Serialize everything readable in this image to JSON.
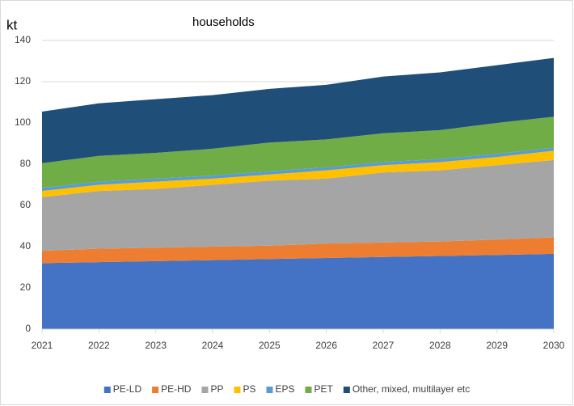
{
  "chart_data": {
    "type": "area",
    "stacked": true,
    "title": "households",
    "ylabel": "kt",
    "categories": [
      "2021",
      "2022",
      "2023",
      "2024",
      "2025",
      "2026",
      "2027",
      "2028",
      "2029",
      "2030"
    ],
    "series": [
      {
        "name": "PE-LD",
        "color": "#4472c4",
        "values": [
          32,
          32.5,
          33,
          33.5,
          34,
          34.5,
          35,
          35.5,
          36,
          36.5
        ]
      },
      {
        "name": "PE-HD",
        "color": "#ed7d31",
        "values": [
          6,
          6.5,
          6.5,
          6.5,
          6.5,
          7,
          7,
          7,
          7.5,
          8
        ]
      },
      {
        "name": "PP",
        "color": "#a5a5a5",
        "values": [
          26,
          28,
          28.5,
          30,
          31.5,
          31.5,
          34,
          34.5,
          36,
          37.5
        ]
      },
      {
        "name": "PS",
        "color": "#ffc000",
        "values": [
          3,
          3,
          3.5,
          3,
          3,
          4,
          3.5,
          4,
          4,
          4.5
        ]
      },
      {
        "name": "EPS",
        "color": "#5b9bd5",
        "values": [
          1.5,
          1.5,
          1.5,
          1.5,
          1.5,
          1.5,
          1.5,
          1.5,
          1.5,
          1.5
        ]
      },
      {
        "name": "PET",
        "color": "#70ad47",
        "values": [
          12,
          12.5,
          12.5,
          13,
          14,
          13.5,
          14,
          14,
          15,
          15
        ]
      },
      {
        "name": "Other, mixed, multilayer etc",
        "color": "#1f4e79",
        "values": [
          25,
          25.5,
          26,
          26,
          26,
          26.5,
          27.5,
          28,
          28,
          28.5
        ]
      }
    ],
    "ylim": [
      0,
      140
    ],
    "yticks": [
      0,
      20,
      40,
      60,
      80,
      100,
      120,
      140
    ],
    "grid": true,
    "legend": "bottom"
  }
}
